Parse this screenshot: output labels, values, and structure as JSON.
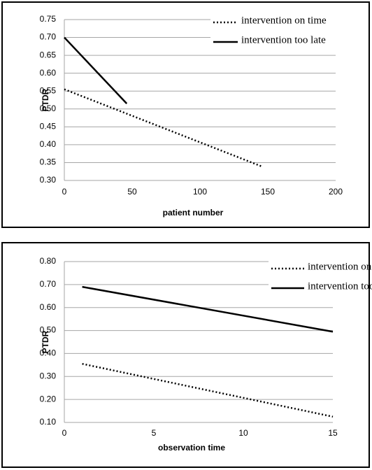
{
  "chart_data": [
    {
      "type": "line",
      "x_label": "patient number",
      "y_label": "PTDR",
      "xlim": [
        0,
        200
      ],
      "xticks": [
        0,
        50,
        100,
        150,
        200
      ],
      "ylim": [
        0.3,
        0.75
      ],
      "yticks": [
        {
          "value": 0.3,
          "label": "0.30"
        },
        0.35,
        {
          "value": 0.4,
          "label": "0.40"
        },
        0.45,
        {
          "value": 0.5,
          "label": "0.50"
        },
        0.55,
        {
          "value": 0.6,
          "label": "0.60"
        },
        0.65,
        {
          "value": 0.7,
          "label": "0.70"
        },
        0.75
      ],
      "grid": true,
      "legend": "upper right",
      "series": [
        {
          "name": "intervention on time",
          "color": "#000000",
          "style": "dotted",
          "x": [
            0,
            145
          ],
          "values": [
            0.555,
            0.34
          ]
        },
        {
          "name": "intervention too late",
          "color": "#000000",
          "style": "solid",
          "x": [
            0,
            46
          ],
          "values": [
            0.7,
            0.515
          ]
        }
      ]
    },
    {
      "type": "line",
      "x_label": "observation time",
      "y_label": "PTDR",
      "xlim": [
        0,
        15
      ],
      "xticks": [
        0,
        5,
        10,
        15
      ],
      "ylim": [
        0.1,
        0.8
      ],
      "yticks": [
        {
          "value": 0.1,
          "label": "0.10"
        },
        {
          "value": 0.2,
          "label": "0.20"
        },
        {
          "value": 0.3,
          "label": "0.30"
        },
        {
          "value": 0.4,
          "label": "0.40"
        },
        {
          "value": 0.5,
          "label": "0.50"
        },
        {
          "value": 0.6,
          "label": "0.60"
        },
        {
          "value": 0.7,
          "label": "0.70"
        },
        {
          "value": 0.8,
          "label": "0.80"
        }
      ],
      "grid": true,
      "legend": "upper right",
      "series": [
        {
          "name": "intervention on time",
          "color": "#000000",
          "style": "dotted",
          "x": [
            1,
            15
          ],
          "values": [
            0.355,
            0.125
          ]
        },
        {
          "name": "intervention too late",
          "color": "#000000",
          "style": "solid",
          "x": [
            1,
            15
          ],
          "values": [
            0.69,
            0.495
          ]
        }
      ]
    }
  ]
}
